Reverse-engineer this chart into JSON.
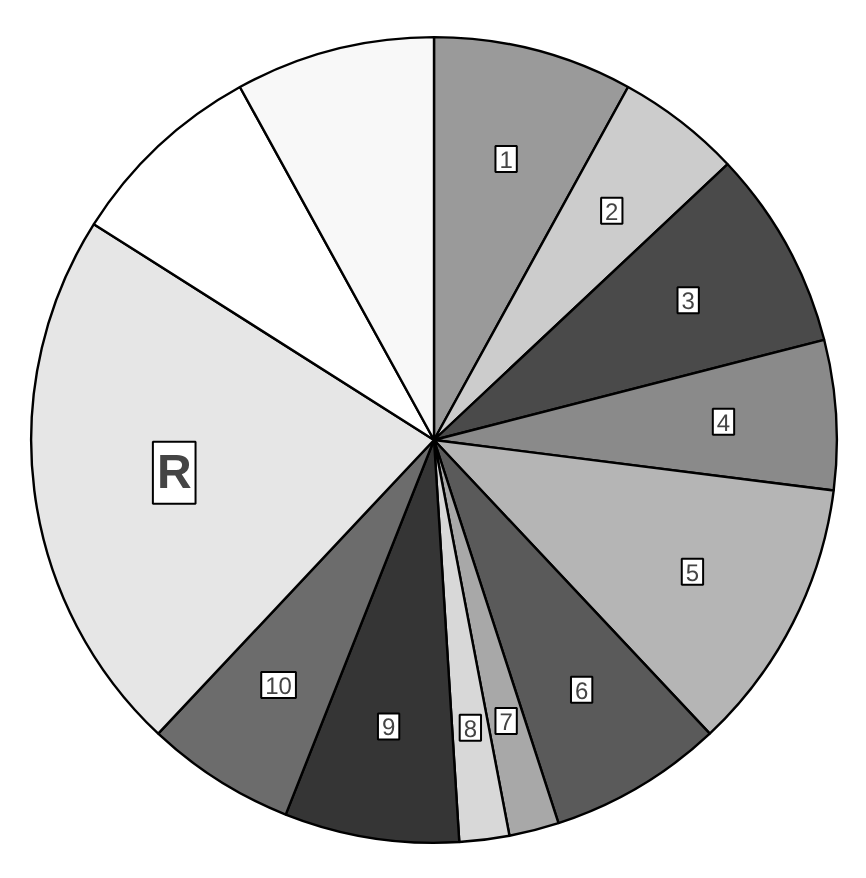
{
  "chart_data": {
    "type": "pie",
    "categories": [
      "1",
      "2",
      "3",
      "4",
      "5",
      "6",
      "7",
      "8",
      "9",
      "10",
      "R",
      null,
      null
    ],
    "values": [
      8,
      5,
      8,
      6,
      11,
      7,
      2,
      2,
      7,
      6,
      22,
      8,
      8
    ],
    "colors": [
      "#9a9a9a",
      "#cccccc",
      "#4a4a4a",
      "#8a8a8a",
      "#b5b5b5",
      "#5a5a5a",
      "#a8a8a8",
      "#d8d8d8",
      "#353535",
      "#6c6c6c",
      "#e6e6e6",
      "#ffffff",
      "#f8f8f8"
    ]
  }
}
